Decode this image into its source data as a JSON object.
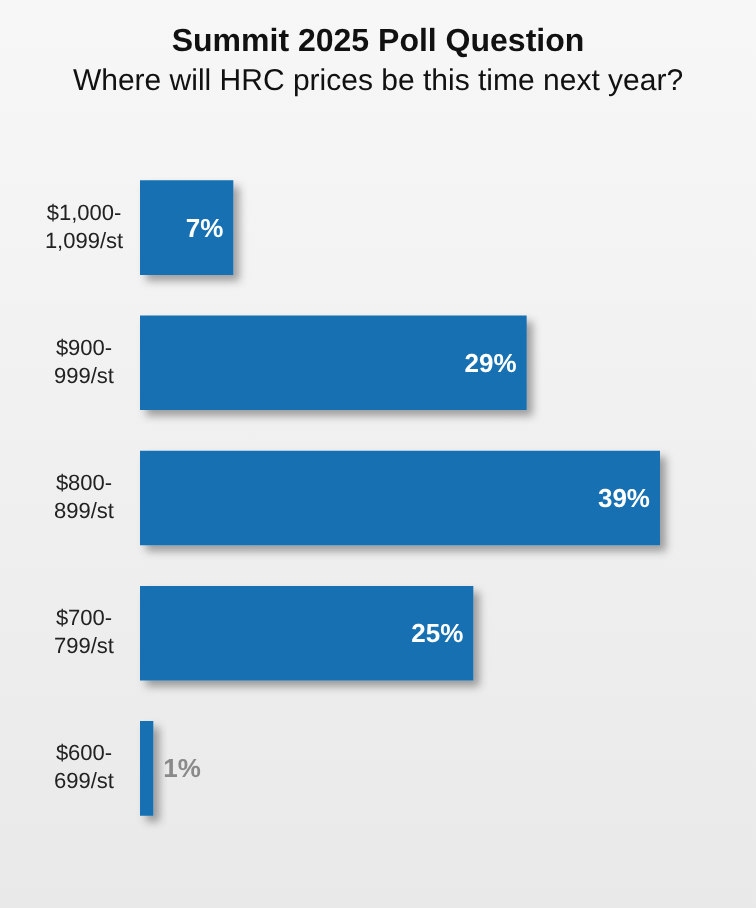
{
  "chart_data": {
    "type": "bar",
    "orientation": "horizontal",
    "title": "Summit 2025 Poll Question",
    "subtitle": "Where will HRC prices be this time next year?",
    "categories": [
      "$1,000-\n1,099/st",
      "$900-\n999/st",
      "$800-\n899/st",
      "$700-\n799/st",
      "$600-\n699/st"
    ],
    "values": [
      7,
      29,
      39,
      25,
      1
    ],
    "color": "#1570b2",
    "value_labels": [
      "7%",
      "29%",
      "39%",
      "25%",
      "1%"
    ]
  }
}
